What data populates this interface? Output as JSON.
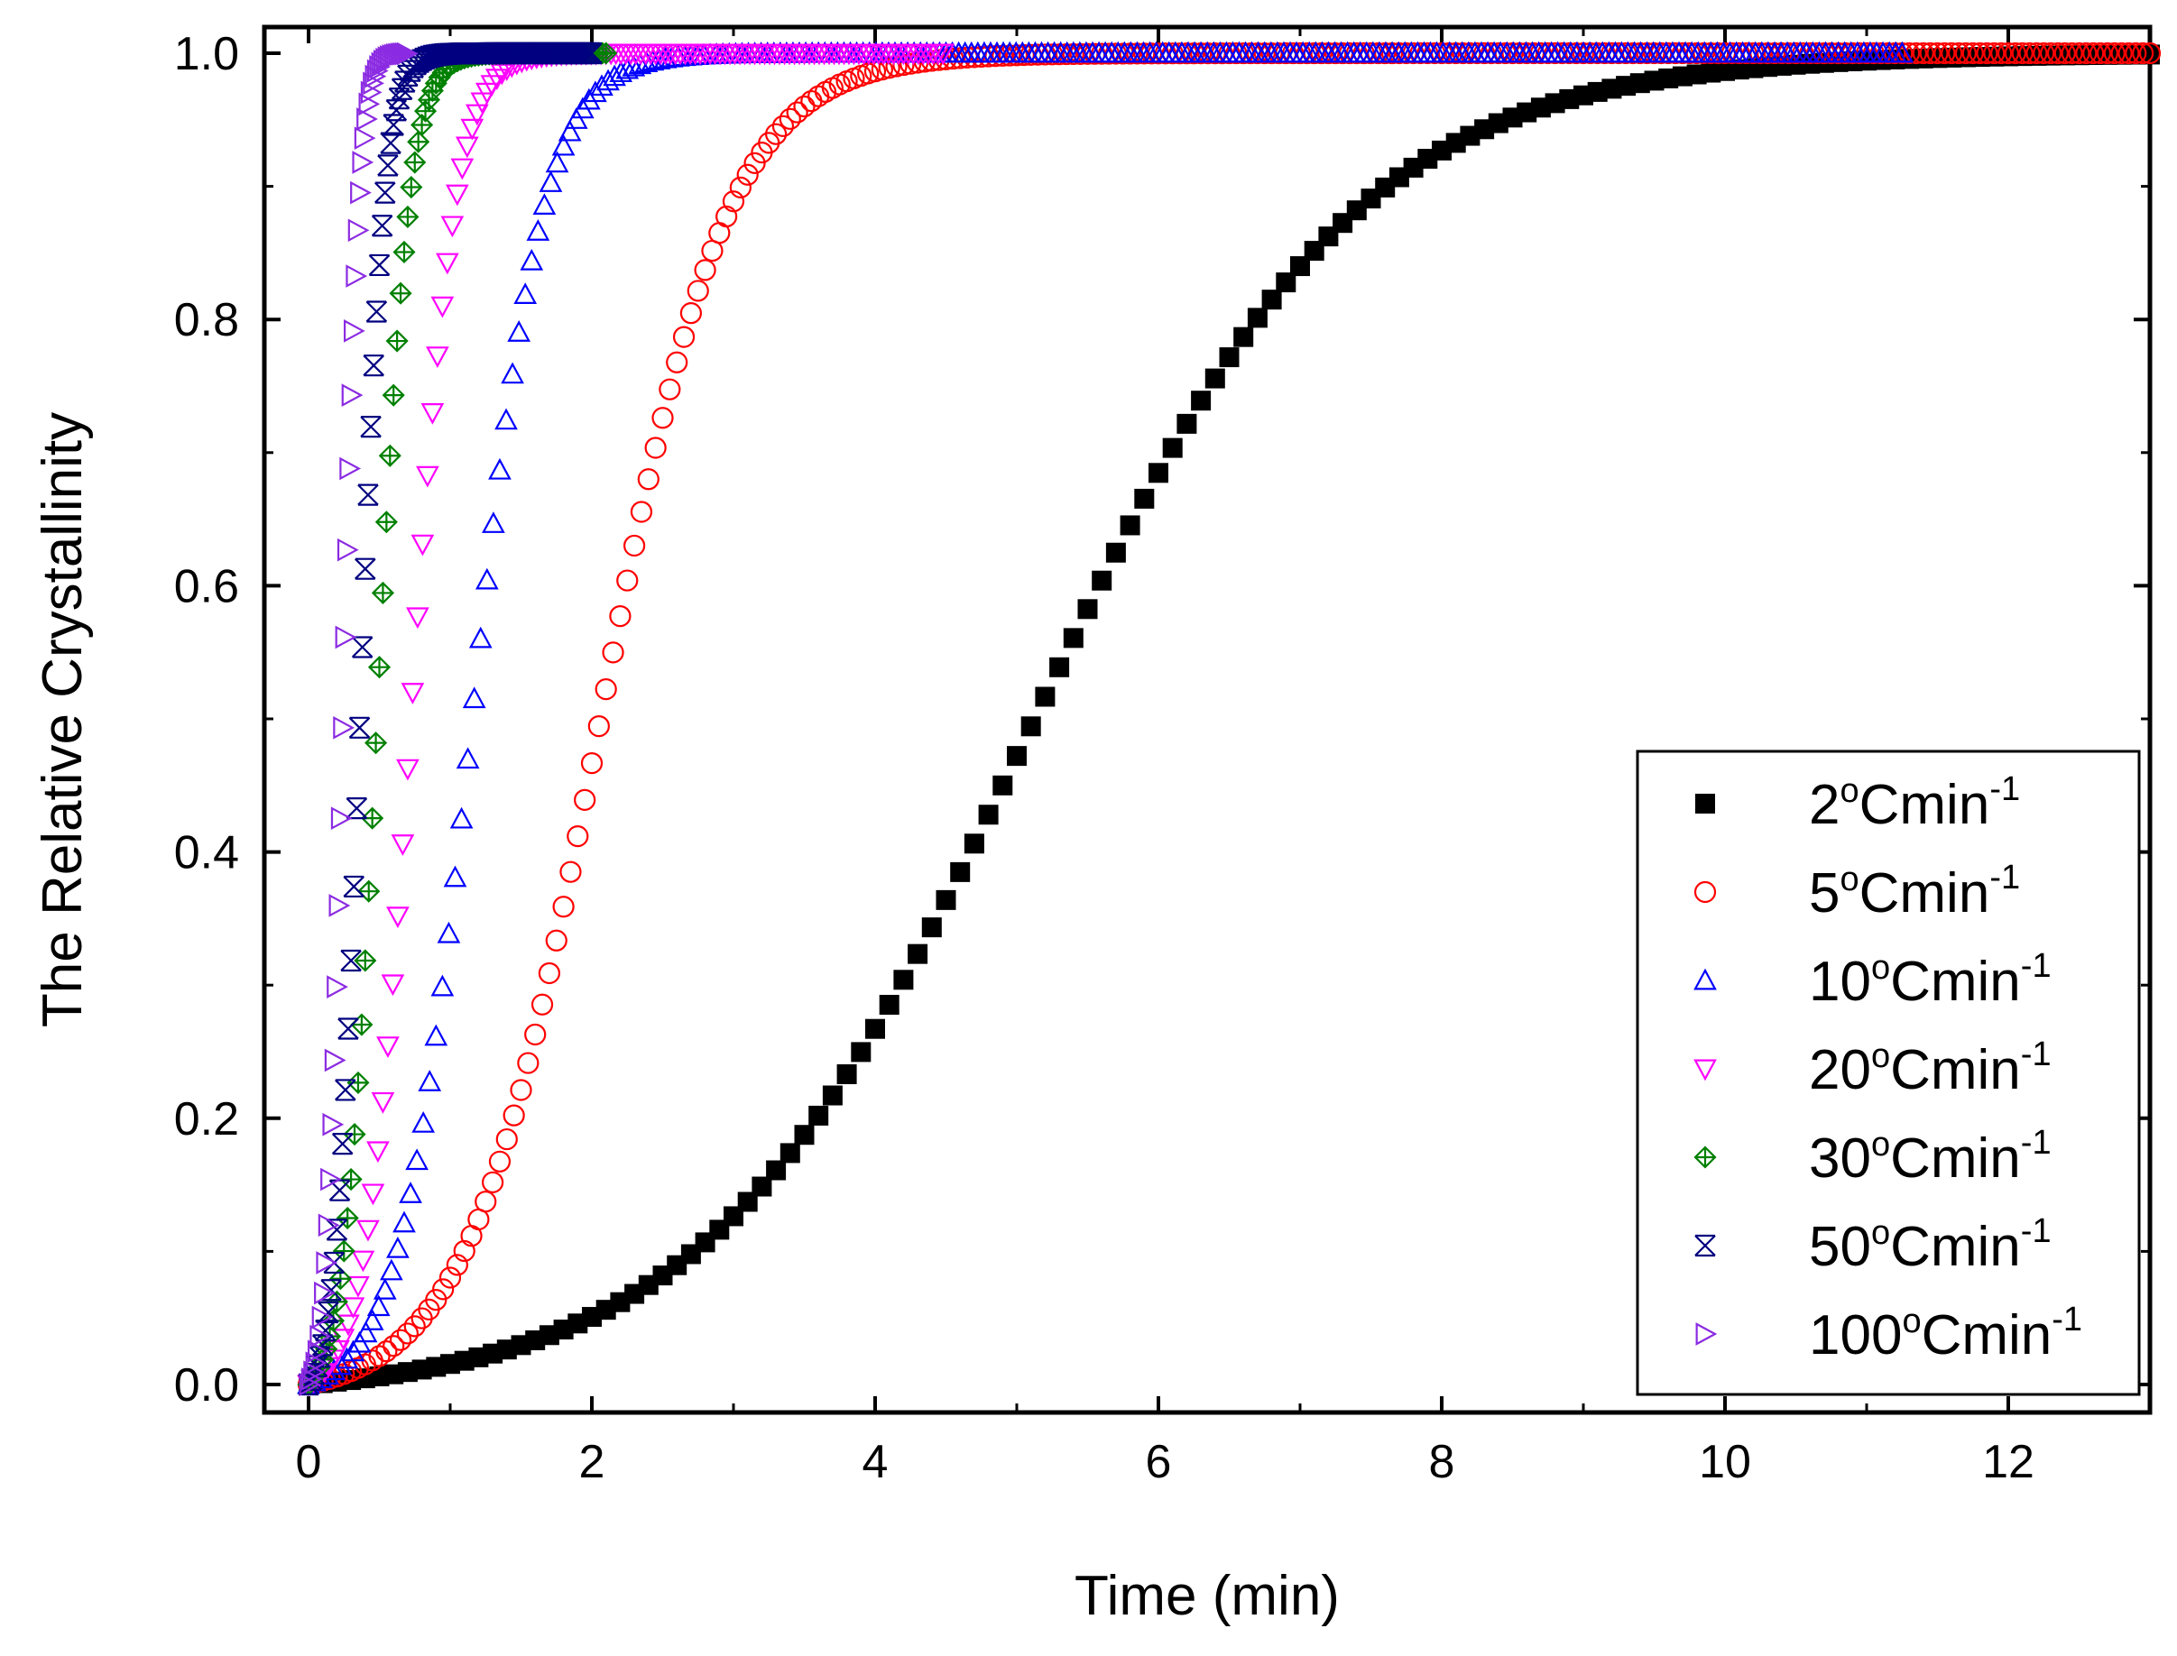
{
  "chart_data": {
    "type": "scatter",
    "title": "",
    "xlabel": "Time (min)",
    "ylabel": "The Relative Crystallinity",
    "xlim": [
      -0.3,
      13
    ],
    "ylim": [
      -0.02,
      1.02
    ],
    "xticks": [
      0,
      2,
      4,
      6,
      8,
      10,
      12
    ],
    "xtick_labels": [
      "0",
      "2",
      "4",
      "6",
      "8",
      "10",
      "12"
    ],
    "yticks": [
      0.0,
      0.2,
      0.4,
      0.6,
      0.8,
      1.0
    ],
    "ytick_labels": [
      "0.0",
      "0.2",
      "0.4",
      "0.6",
      "0.8",
      "1.0"
    ],
    "grid": false,
    "legend_position": "bottom-right",
    "series": [
      {
        "name": "2°Cmin-1",
        "label_main": "2",
        "label_unit": "Cmin",
        "marker": "square-filled",
        "color": "#000000",
        "t_half": 5.1,
        "k": 0.88,
        "x_start": 0,
        "x_end": 13,
        "step": 0.1
      },
      {
        "name": "5°Cmin-1",
        "label_main": "5",
        "label_unit": "Cmin",
        "marker": "circle-open",
        "color": "#ff0000",
        "t_half": 2.05,
        "k": 2.2,
        "x_start": 0,
        "x_end": 13,
        "step": 0.05
      },
      {
        "name": "10°Cmin-1",
        "label_main": "10",
        "label_unit": "Cmin",
        "marker": "triangle-up-open",
        "color": "#0000ff",
        "t_half": 1.15,
        "k": 4.0,
        "x_start": 0,
        "x_end": 11.25,
        "step": 0.045
      },
      {
        "name": "20°Cmin-1",
        "label_main": "20",
        "label_unit": "Cmin",
        "marker": "triangle-down-open",
        "color": "#ff00ff",
        "t_half": 0.72,
        "k": 6.5,
        "x_start": 0,
        "x_end": 4.5,
        "step": 0.035
      },
      {
        "name": "30°Cmin-1",
        "label_main": "30",
        "label_unit": "Cmin",
        "marker": "circle-cross",
        "color": "#008000",
        "t_half": 0.48,
        "k": 9.0,
        "x_start": 0,
        "x_end": 2.1,
        "step": 0.025
      },
      {
        "name": "50°Cmin-1",
        "label_main": "50",
        "label_unit": "Cmin",
        "marker": "star-x",
        "color": "#000080",
        "t_half": 0.36,
        "k": 12.0,
        "x_start": 0,
        "x_end": 2.0,
        "step": 0.02
      },
      {
        "name": "100°Cmin-1",
        "label_main": "100",
        "label_unit": "Cmin",
        "marker": "triangle-right-open",
        "color": "#8b2be2",
        "t_half": 0.24,
        "k": 18.0,
        "x_start": 0,
        "x_end": 0.7,
        "step": 0.015
      }
    ]
  }
}
